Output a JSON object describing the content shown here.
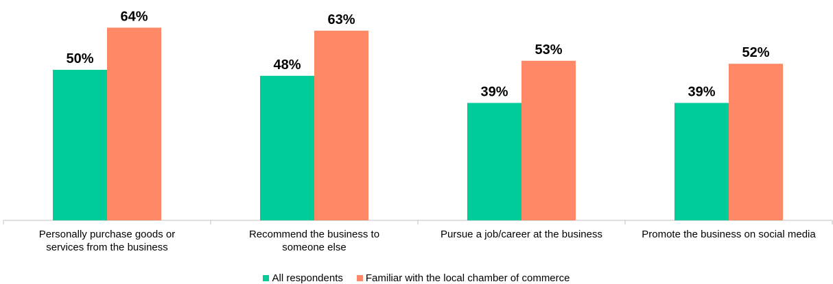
{
  "chart_data": {
    "type": "bar",
    "categories": [
      "Personally purchase goods or\nservices from the business",
      "Recommend the business to\nsomeone else",
      "Pursue a job/career at the business",
      "Promote the business on social media"
    ],
    "series": [
      {
        "name": "All respondents",
        "color": "#00cc99",
        "values": [
          50,
          48,
          39,
          39
        ],
        "value_labels": [
          "50%",
          "48%",
          "39%",
          "39%"
        ]
      },
      {
        "name": "Familiar with the local chamber of commerce",
        "color": "#ff8866",
        "values": [
          64,
          63,
          53,
          52
        ],
        "value_labels": [
          "64%",
          "63%",
          "53%",
          "52%"
        ]
      }
    ]
  }
}
